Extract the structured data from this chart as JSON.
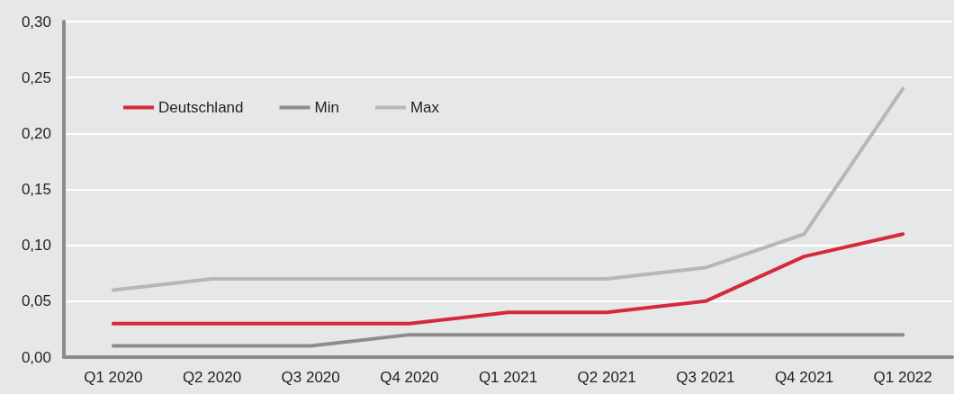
{
  "chart_data": {
    "type": "line",
    "categories": [
      "Q1 2020",
      "Q2 2020",
      "Q3 2020",
      "Q4 2020",
      "Q1 2021",
      "Q2 2021",
      "Q3 2021",
      "Q4 2021",
      "Q1 2022"
    ],
    "series": [
      {
        "name": "Deutschland",
        "color": "#d42a3c",
        "values": [
          0.03,
          0.03,
          0.03,
          0.03,
          0.04,
          0.04,
          0.05,
          0.09,
          0.11
        ]
      },
      {
        "name": "Min",
        "color": "#8c8c8c",
        "values": [
          0.01,
          0.01,
          0.01,
          0.02,
          0.02,
          0.02,
          0.02,
          0.02,
          0.02
        ]
      },
      {
        "name": "Max",
        "color": "#b7b7b7",
        "values": [
          0.06,
          0.07,
          0.07,
          0.07,
          0.07,
          0.07,
          0.08,
          0.11,
          0.24
        ]
      }
    ],
    "ylim": [
      0,
      0.3
    ],
    "yticks": [
      {
        "value": 0,
        "label": "0,00"
      },
      {
        "value": 0.05,
        "label": "0,05"
      },
      {
        "value": 0.1,
        "label": "0,10"
      },
      {
        "value": 0.15,
        "label": "0,15"
      },
      {
        "value": 0.2,
        "label": "0,20"
      },
      {
        "value": 0.25,
        "label": "0,25"
      },
      {
        "value": 0.3,
        "label": "0,30"
      }
    ],
    "grid": "y",
    "legend": "top left",
    "marker": "none",
    "line_style": "solid"
  }
}
